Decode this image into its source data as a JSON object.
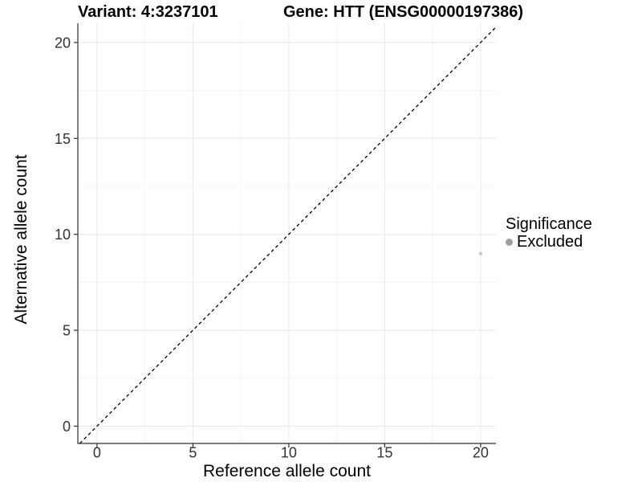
{
  "plot": {
    "title_variant": "Variant: 4:3237101",
    "title_gene": "Gene: HTT (ENSG00000197386)"
  },
  "legend": {
    "title": "Significance",
    "items": [
      {
        "label": "Excluded",
        "color": "#9e9e9e"
      }
    ]
  },
  "colors": {
    "background": "#ffffff",
    "grid_major": "#e8e8e8",
    "grid_minor": "#f3f3f3",
    "axis": "#2f2f2f",
    "tick_label": "#333333",
    "title": "#000000",
    "point": "#c3c3c3",
    "reference_line": "#000000"
  },
  "chart_data": {
    "type": "scatter",
    "title": "Variant: 4:3237101    Gene: HTT (ENSG00000197386)",
    "xlabel": "Reference allele count",
    "ylabel": "Alternative allele count",
    "xlim": [
      -1,
      20.8
    ],
    "ylim": [
      -0.9,
      21.0
    ],
    "x_ticks": [
      0,
      5,
      10,
      15,
      20
    ],
    "y_ticks": [
      0,
      5,
      10,
      15,
      20
    ],
    "x_minor_ticks": [
      2.5,
      7.5,
      12.5,
      17.5
    ],
    "y_minor_ticks": [
      2.5,
      7.5,
      12.5,
      17.5
    ],
    "grid": "major+minor",
    "legend_position": "right",
    "legend_title": "Significance",
    "reference_line": {
      "type": "identity",
      "slope": 1,
      "intercept": 0,
      "style": "dashed",
      "color": "#000000"
    },
    "series": [
      {
        "name": "Excluded",
        "significance": "Excluded",
        "color": "#c3c3c3",
        "points": [
          [
            20,
            9
          ]
        ]
      }
    ]
  }
}
